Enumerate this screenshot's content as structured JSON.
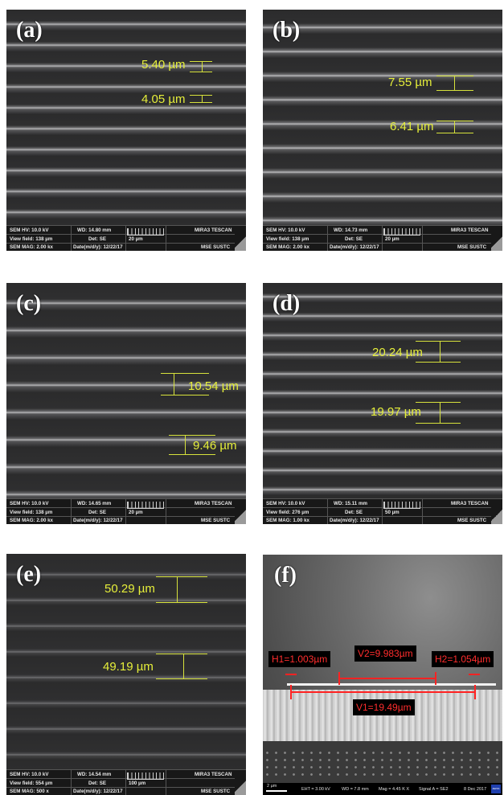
{
  "panels": [
    {
      "letter": "(a)",
      "m1": "5.40 µm",
      "m2": "4.05 µm",
      "hv": "SEM HV: 10.0 kV",
      "wd": "WD: 14.80 mm",
      "brand": "MIRA3 TESCAN",
      "vf": "View field: 138 µm",
      "det": "Det: SE",
      "scale": "20 µm",
      "mag": "SEM MAG: 2.00 kx",
      "date": "Date(m/d/y): 12/22/17",
      "inst": "MSE SUSTC"
    },
    {
      "letter": "(b)",
      "m1": "7.55 µm",
      "m2": "6.41 µm",
      "hv": "SEM HV: 10.0 kV",
      "wd": "WD: 14.73 mm",
      "brand": "MIRA3 TESCAN",
      "vf": "View field: 138 µm",
      "det": "Det: SE",
      "scale": "20 µm",
      "mag": "SEM MAG: 2.00 kx",
      "date": "Date(m/d/y): 12/22/17",
      "inst": "MSE SUSTC"
    },
    {
      "letter": "(c)",
      "m1": "10.54 µm",
      "m2": "9.46 µm",
      "hv": "SEM HV: 10.0 kV",
      "wd": "WD: 14.65 mm",
      "brand": "MIRA3 TESCAN",
      "vf": "View field: 138 µm",
      "det": "Det: SE",
      "scale": "20 µm",
      "mag": "SEM MAG: 2.00 kx",
      "date": "Date(m/d/y): 12/22/17",
      "inst": "MSE SUSTC"
    },
    {
      "letter": "(d)",
      "m1": "20.24 µm",
      "m2": "19.97 µm",
      "hv": "SEM HV: 10.0 kV",
      "wd": "WD: 15.11 mm",
      "brand": "MIRA3 TESCAN",
      "vf": "View field: 276 µm",
      "det": "Det: SE",
      "scale": "50 µm",
      "mag": "SEM MAG: 1.00 kx",
      "date": "Date(m/d/y): 12/22/17",
      "inst": "MSE SUSTC"
    },
    {
      "letter": "(e)",
      "m1": "50.29 µm",
      "m2": "49.19 µm",
      "hv": "SEM HV: 10.0 kV",
      "wd": "WD: 14.54 mm",
      "brand": "MIRA3 TESCAN",
      "vf": "View field: 554 µm",
      "det": "Det: SE",
      "scale": "100 µm",
      "mag": "SEM MAG: 500 x",
      "date": "Date(m/d/y): 12/22/17",
      "inst": "MSE SUSTC"
    }
  ],
  "panel_f": {
    "letter": "(f)",
    "h1": "H1=1.003µm",
    "v2": "V2=9.983µm",
    "h2": "H2=1.054µm",
    "v1": "V1=19.49µm",
    "scale": "2 µm",
    "eht": "EHT = 3.00 kV",
    "wd": "WD = 7.8 mm",
    "mag": "Mag = 4.45 K X",
    "signal": "Signal A = SE2",
    "date": "8 Dec 2017",
    "logo": "ZEISS"
  },
  "colors": {
    "measure": "#e6ef3a",
    "red_label": "#ff2d2d"
  }
}
